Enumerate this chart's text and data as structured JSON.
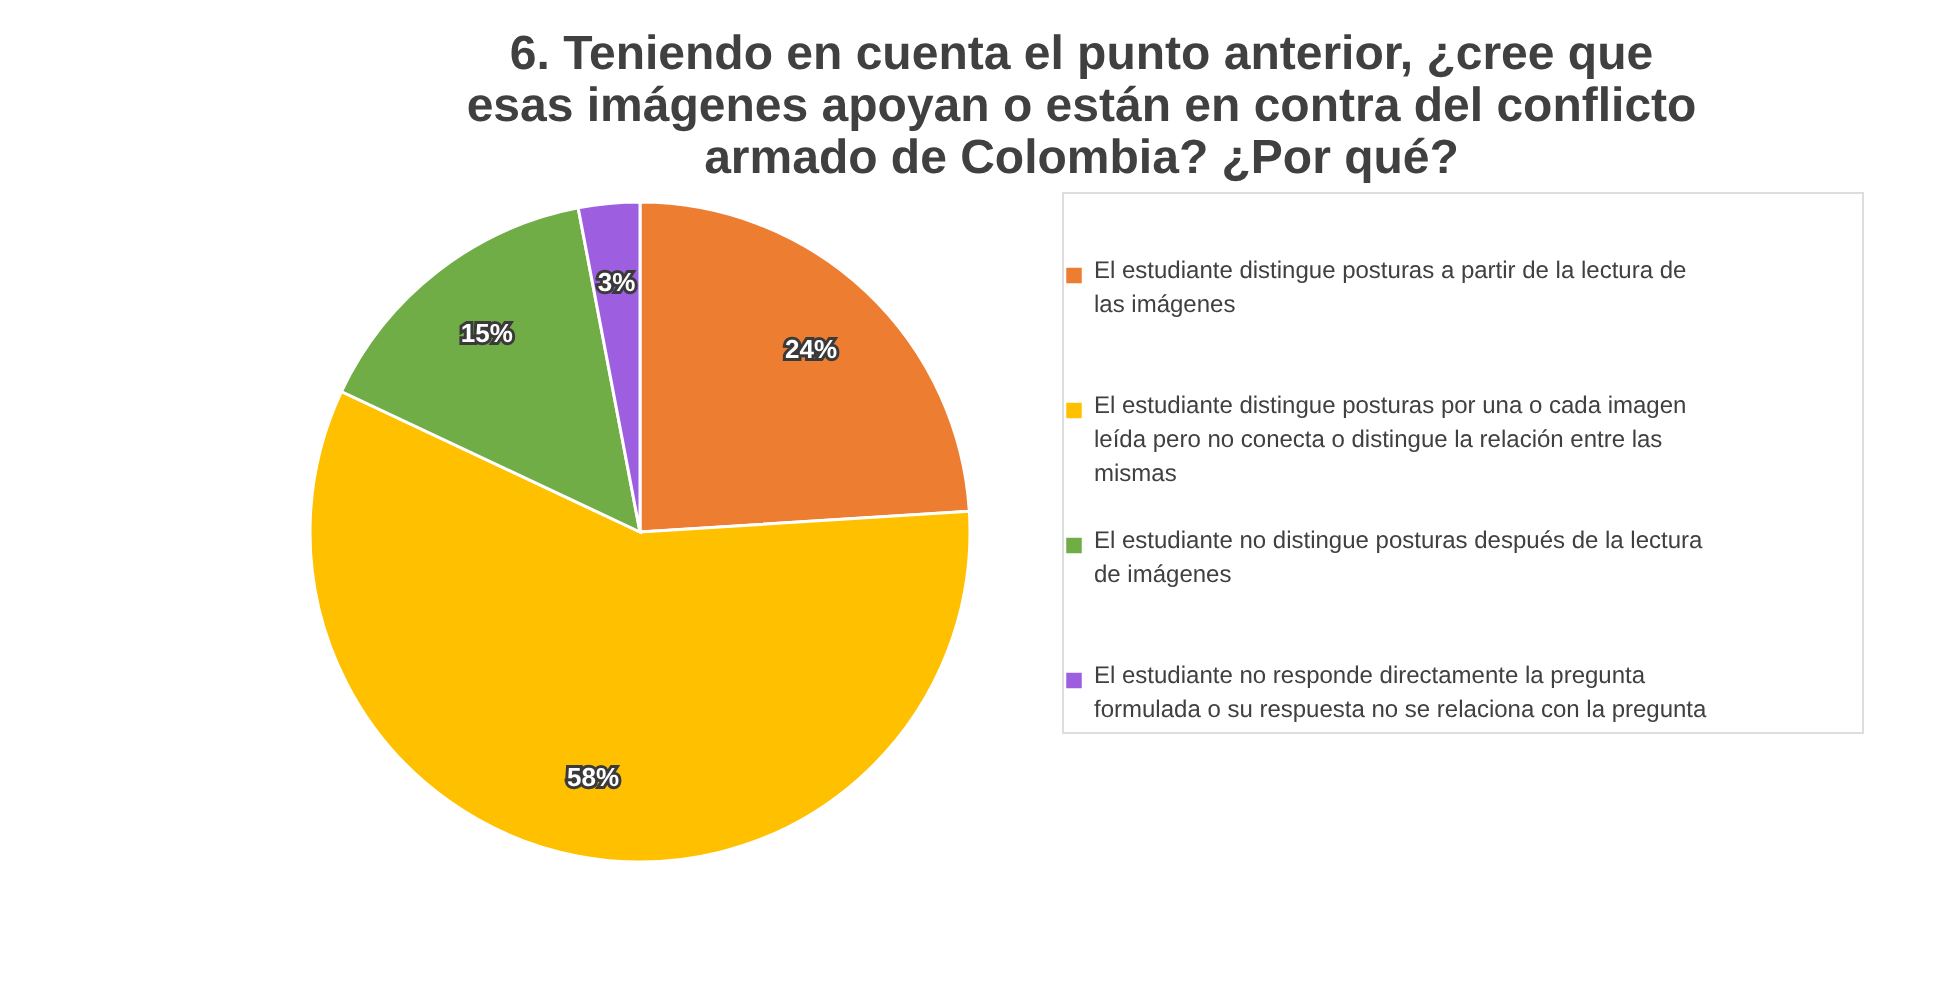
{
  "chart_data": {
    "type": "pie",
    "title": "6. Teniendo en cuenta el punto anterior, ¿cree que esas imágenes apoyan o están en contra del conflicto armado de Colombia? ¿Por qué?",
    "categories": [
      "El estudiante distingue posturas a partir de la lectura de las imágenes",
      "El estudiante distingue posturas por una o cada imagen leída pero no conecta o distingue la relación entre las mismas",
      "El estudiante no distingue posturas después de la lectura de imágenes",
      "El estudiante no responde directamente la pregunta formulada o su respuesta no se relaciona con la pregunta"
    ],
    "values": [
      24,
      58,
      15,
      3
    ],
    "colors": [
      "#ed7d31",
      "#ffc000",
      "#70ad47",
      "#9e5ee0"
    ],
    "value_labels": [
      "24%",
      "58%",
      "15%",
      "3%"
    ],
    "legend": "right"
  }
}
